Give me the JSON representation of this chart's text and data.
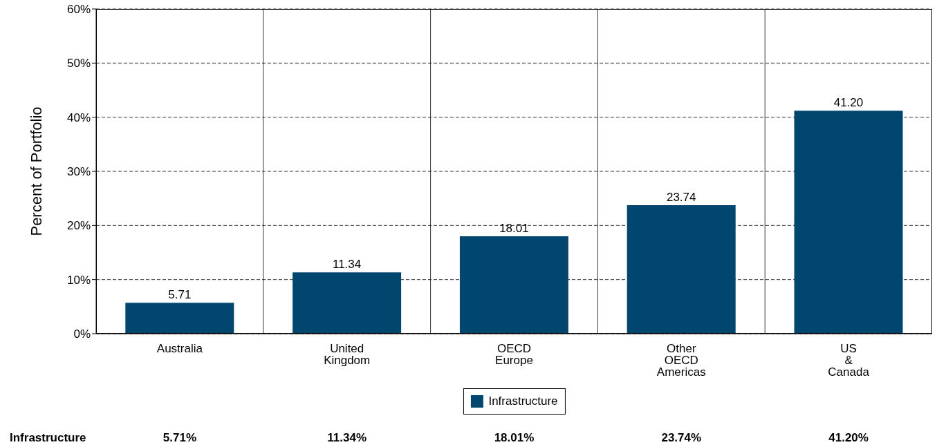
{
  "chart_data": {
    "type": "bar",
    "ylabel": "Percent of Portfolio",
    "categories": [
      "Australia",
      "United Kingdom",
      "OECD Europe",
      "Other OECD Americas",
      "US & Canada"
    ],
    "series": [
      {
        "name": "Infrastructure",
        "color": "#00466e",
        "values": [
          5.71,
          11.34,
          18.01,
          23.74,
          41.2
        ],
        "value_labels": [
          "5.71",
          "11.34",
          "18.01",
          "23.74",
          "41.20"
        ]
      }
    ],
    "ylim": [
      0,
      60
    ],
    "yticks": [
      {
        "value": 0,
        "label": "0%"
      },
      {
        "value": 10,
        "label": "10%"
      },
      {
        "value": 20,
        "label": "20%"
      },
      {
        "value": 30,
        "label": "30%"
      },
      {
        "value": 40,
        "label": "40%"
      },
      {
        "value": 50,
        "label": "50%"
      },
      {
        "value": 60,
        "label": "60%"
      }
    ],
    "grid": true,
    "legend": "bottom",
    "annotations": [
      "5.71%",
      "11.34%",
      "18.01%",
      "23.74%",
      "41.20%"
    ]
  }
}
